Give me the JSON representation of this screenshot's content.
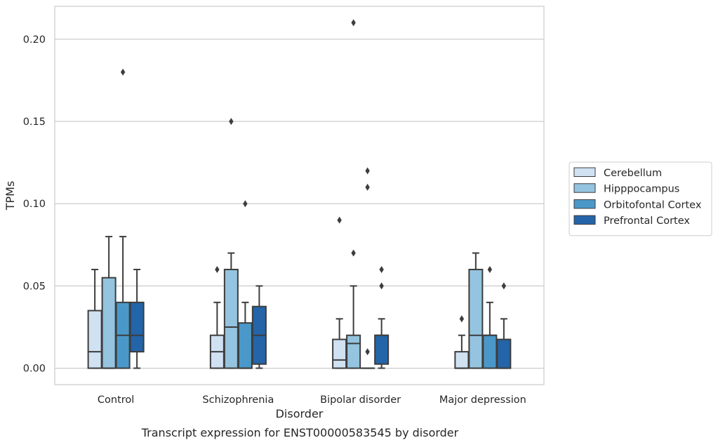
{
  "chart_data": {
    "type": "box",
    "title": "",
    "caption": "Transcript expression for ENST00000583545 by disorder",
    "xlabel": "Disorder",
    "ylabel": "TPMs",
    "ylim": [
      -0.01,
      0.22
    ],
    "yticks": [
      0.0,
      0.05,
      0.1,
      0.15,
      0.2
    ],
    "ytick_labels": [
      "0.00",
      "0.05",
      "0.10",
      "0.15",
      "0.20"
    ],
    "grid": true,
    "legend_position": "right",
    "categories": [
      "Control",
      "Schizophrenia",
      "Bipolar disorder",
      "Major depression"
    ],
    "series": [
      {
        "name": "Cerebellum",
        "color": "#d0e1f2",
        "boxes": [
          {
            "whislo": 0.0,
            "q1": 0.0,
            "med": 0.01,
            "q3": 0.035,
            "whishi": 0.06,
            "fliers": []
          },
          {
            "whislo": 0.0,
            "q1": 0.0,
            "med": 0.01,
            "q3": 0.02,
            "whishi": 0.04,
            "fliers": [
              0.06
            ]
          },
          {
            "whislo": 0.0,
            "q1": 0.0,
            "med": 0.005,
            "q3": 0.0175,
            "whishi": 0.03,
            "fliers": [
              0.09
            ]
          },
          {
            "whislo": 0.0,
            "q1": 0.0,
            "med": 0.0,
            "q3": 0.01,
            "whishi": 0.02,
            "fliers": [
              0.03
            ]
          }
        ]
      },
      {
        "name": "Hipppocampus",
        "color": "#94c4df",
        "boxes": [
          {
            "whislo": 0.0,
            "q1": 0.0,
            "med": 0.0,
            "q3": 0.055,
            "whishi": 0.08,
            "fliers": []
          },
          {
            "whislo": 0.0,
            "q1": 0.0,
            "med": 0.025,
            "q3": 0.06,
            "whishi": 0.07,
            "fliers": [
              0.15
            ]
          },
          {
            "whislo": 0.0,
            "q1": 0.0,
            "med": 0.015,
            "q3": 0.02,
            "whishi": 0.05,
            "fliers": [
              0.07,
              0.21
            ]
          },
          {
            "whislo": 0.0,
            "q1": 0.0,
            "med": 0.02,
            "q3": 0.06,
            "whishi": 0.07,
            "fliers": []
          }
        ]
      },
      {
        "name": "Orbitofontal Cortex",
        "color": "#4a98c9",
        "boxes": [
          {
            "whislo": 0.0,
            "q1": 0.0,
            "med": 0.02,
            "q3": 0.04,
            "whishi": 0.08,
            "fliers": [
              0.18
            ]
          },
          {
            "whislo": 0.0,
            "q1": 0.0,
            "med": 0.0,
            "q3": 0.0275,
            "whishi": 0.04,
            "fliers": [
              0.1
            ]
          },
          {
            "whislo": 0.0,
            "q1": 0.0,
            "med": 0.0,
            "q3": 0.0,
            "whishi": 0.0,
            "fliers": [
              0.01,
              0.11,
              0.12
            ]
          },
          {
            "whislo": 0.0,
            "q1": 0.0,
            "med": 0.02,
            "q3": 0.02,
            "whishi": 0.04,
            "fliers": [
              0.06
            ]
          }
        ]
      },
      {
        "name": "Prefrontal Cortex",
        "color": "#2464a8",
        "boxes": [
          {
            "whislo": 0.0,
            "q1": 0.01,
            "med": 0.02,
            "q3": 0.04,
            "whishi": 0.06,
            "fliers": []
          },
          {
            "whislo": 0.0,
            "q1": 0.0025,
            "med": 0.02,
            "q3": 0.0375,
            "whishi": 0.05,
            "fliers": []
          },
          {
            "whislo": 0.0,
            "q1": 0.0025,
            "med": 0.02,
            "q3": 0.02,
            "whishi": 0.03,
            "fliers": [
              0.05,
              0.06
            ]
          },
          {
            "whislo": 0.0,
            "q1": 0.0,
            "med": 0.0,
            "q3": 0.0175,
            "whishi": 0.03,
            "fliers": [
              0.05
            ]
          }
        ]
      }
    ]
  }
}
